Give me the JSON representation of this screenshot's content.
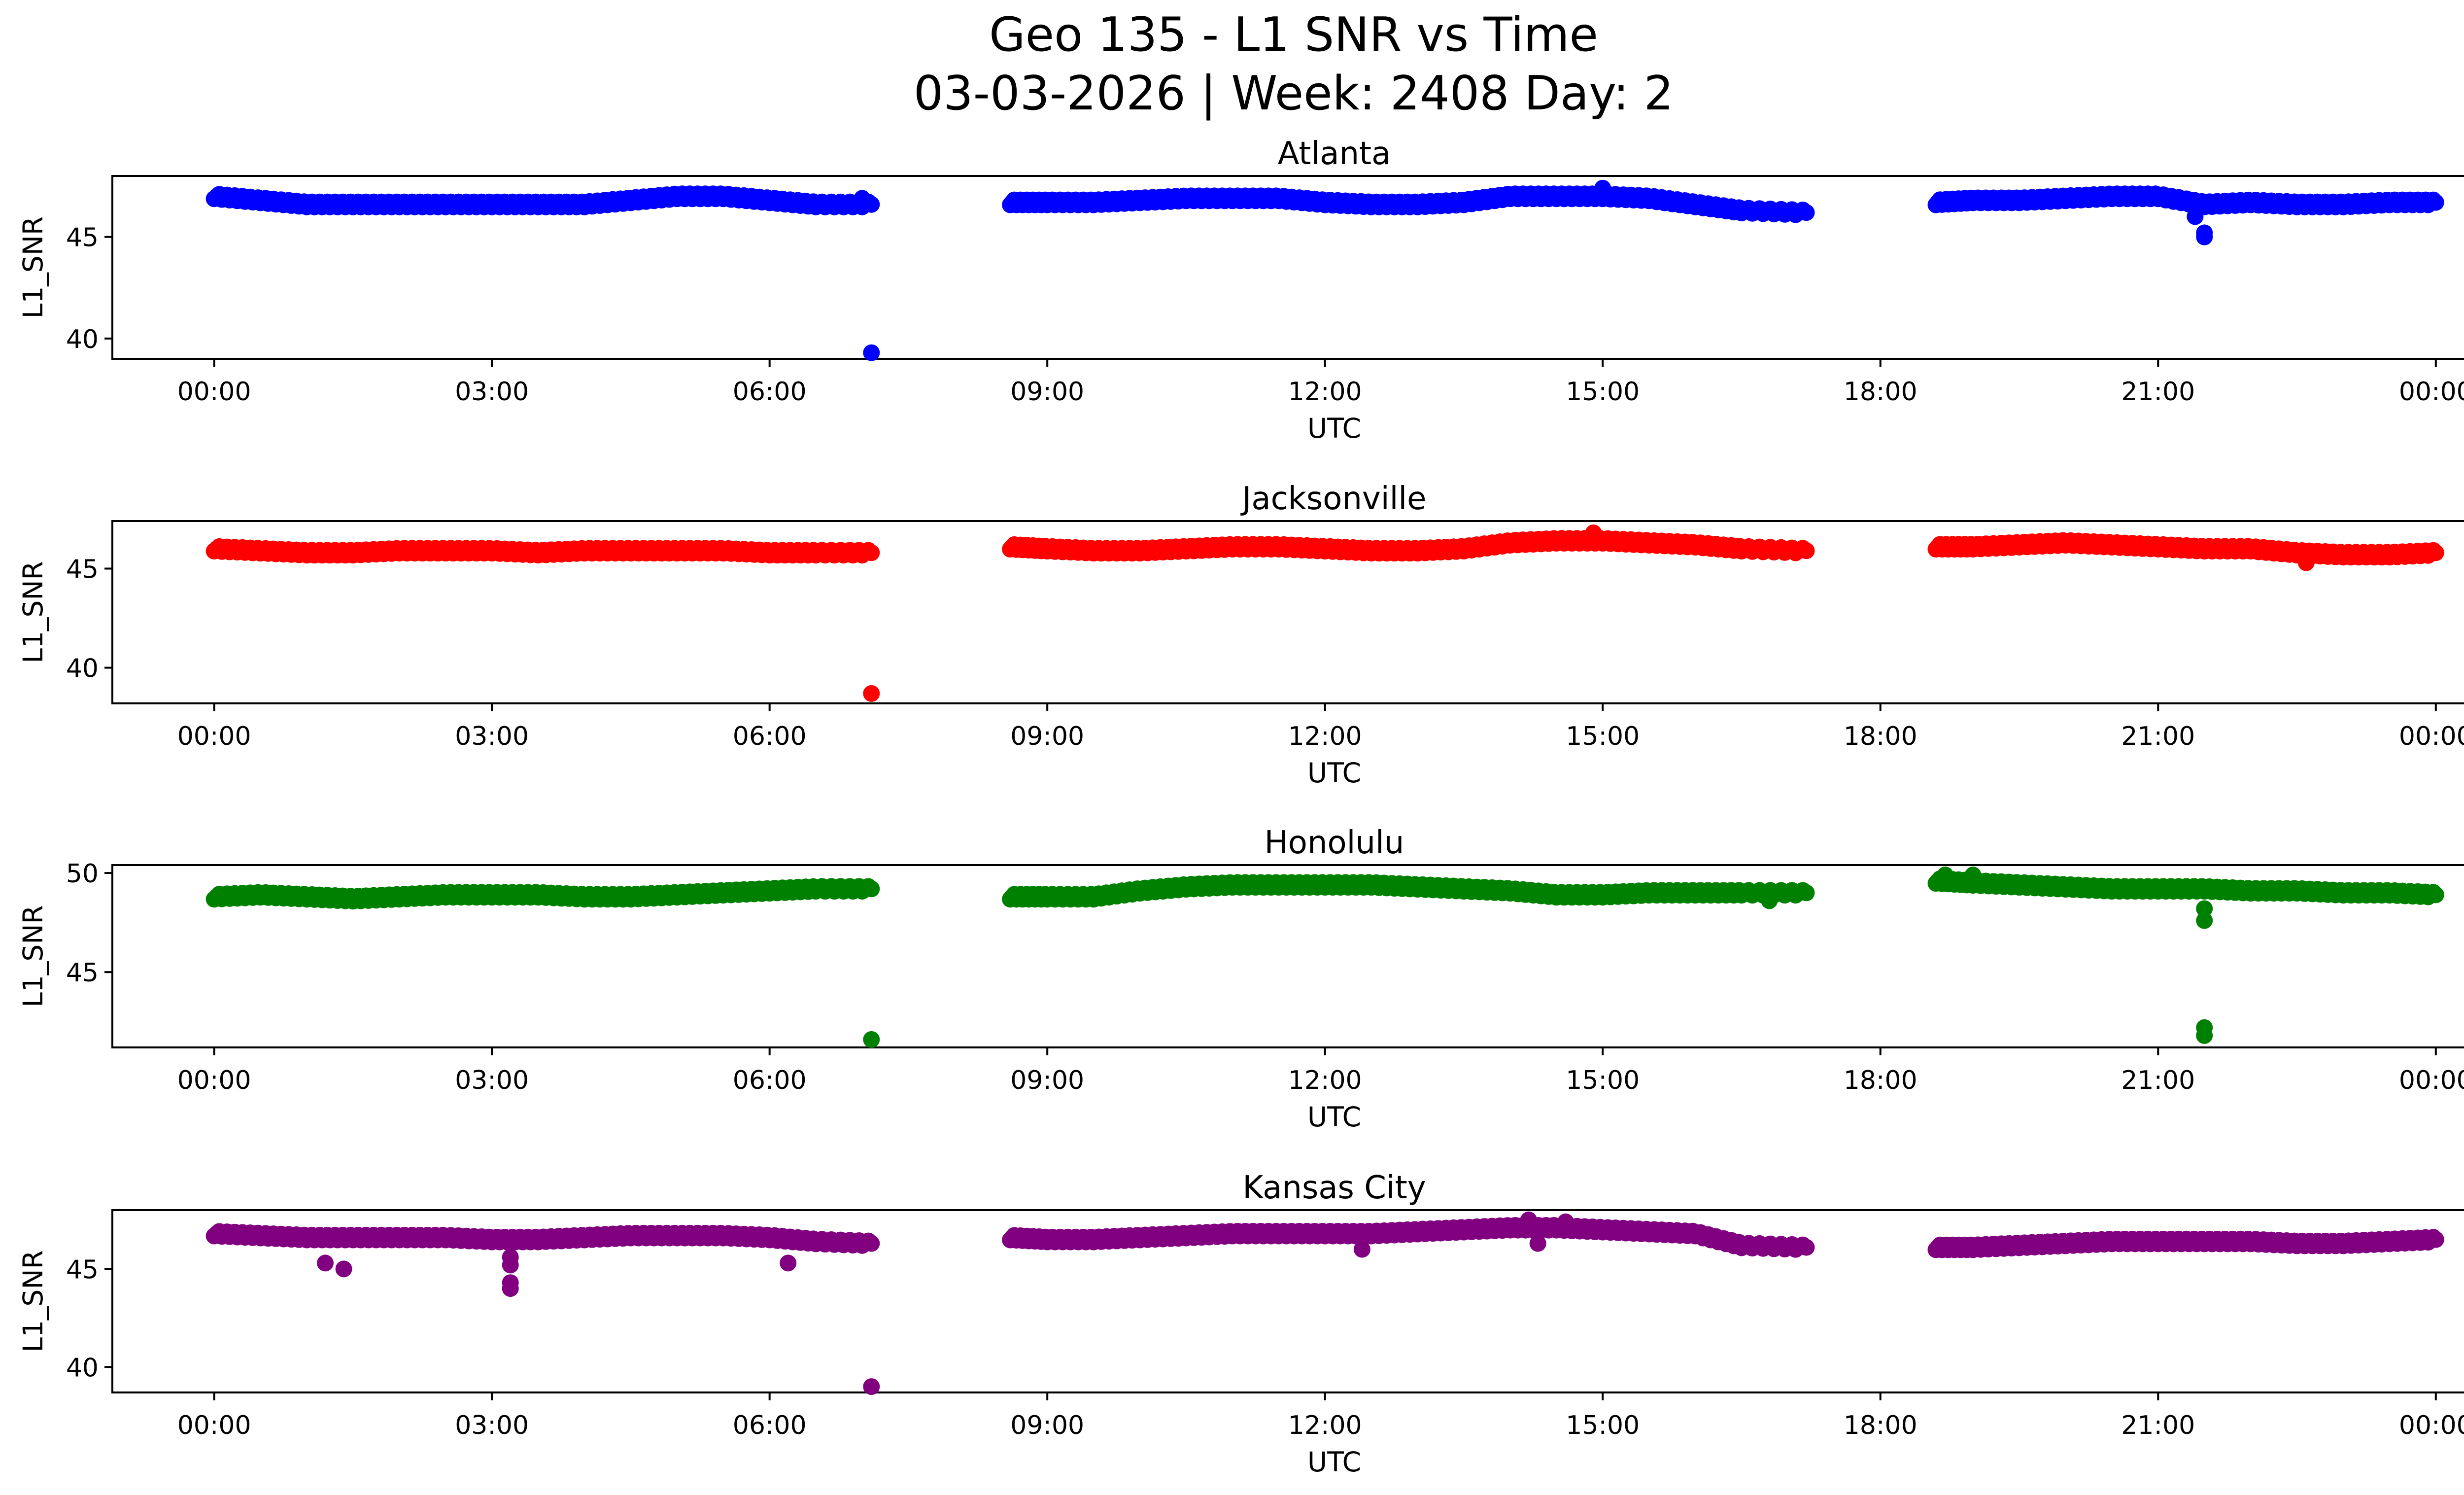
{
  "figure": {
    "title_line1": "Geo 135 - L1 SNR vs Time",
    "title_line2": "03-03-2026 | Week: 2408 Day: 2"
  },
  "chart_data": [
    {
      "type": "scatter",
      "title": "Atlanta",
      "xlabel": "UTC",
      "ylabel": "L1_SNR",
      "color": "#0000ff",
      "xlim": [
        -1.1,
        25.3
      ],
      "ylim": [
        39.0,
        48.0
      ],
      "yticks": [
        40,
        45
      ],
      "xtick_labels": [
        "00:00",
        "03:00",
        "06:00",
        "09:00",
        "12:00",
        "15:00",
        "18:00",
        "21:00",
        "00:00"
      ],
      "segments": [
        {
          "x": [
            0.0,
            0.5,
            1.0,
            1.5,
            2.0,
            2.5,
            3.0,
            3.5,
            4.0,
            4.5,
            5.0,
            5.5,
            6.0,
            6.5,
            7.1
          ],
          "y": [
            47.0,
            46.8,
            46.6,
            46.6,
            46.6,
            46.6,
            46.6,
            46.6,
            46.6,
            46.8,
            47.0,
            47.0,
            46.8,
            46.6,
            46.6
          ]
        },
        {
          "x": [
            8.6,
            9.0,
            9.5,
            10.0,
            10.5,
            11.0,
            11.5,
            12.0,
            12.5,
            13.0,
            13.5,
            14.0,
            14.5,
            15.0,
            15.5,
            16.0,
            16.5,
            17.2
          ],
          "y": [
            46.7,
            46.7,
            46.7,
            46.8,
            46.9,
            46.9,
            46.9,
            46.7,
            46.6,
            46.6,
            46.7,
            47.0,
            47.0,
            47.0,
            46.9,
            46.6,
            46.3,
            46.2
          ]
        },
        {
          "x": [
            18.6,
            19.0,
            19.5,
            20.0,
            20.5,
            21.0,
            21.5,
            22.0,
            22.5,
            23.0,
            23.5,
            24.0
          ],
          "y": [
            46.7,
            46.8,
            46.8,
            46.9,
            47.0,
            47.0,
            46.6,
            46.7,
            46.6,
            46.6,
            46.7,
            46.7
          ]
        }
      ],
      "points": [
        {
          "x": 7.1,
          "y": 39.3
        },
        {
          "x": 7.0,
          "y": 46.9
        },
        {
          "x": 15.0,
          "y": 47.4
        },
        {
          "x": 21.4,
          "y": 46.0
        },
        {
          "x": 21.5,
          "y": 45.2
        },
        {
          "x": 21.5,
          "y": 45.0
        }
      ]
    },
    {
      "type": "scatter",
      "title": "Jacksonville",
      "xlabel": "UTC",
      "ylabel": "L1_SNR",
      "color": "#ff0000",
      "xlim": [
        -1.1,
        25.3
      ],
      "ylim": [
        38.2,
        47.4
      ],
      "yticks": [
        40,
        45
      ],
      "xtick_labels": [
        "00:00",
        "03:00",
        "06:00",
        "09:00",
        "12:00",
        "15:00",
        "18:00",
        "21:00",
        "00:00"
      ],
      "segments": [
        {
          "x": [
            0.0,
            0.5,
            1.0,
            1.5,
            2.0,
            2.5,
            3.0,
            3.5,
            4.0,
            4.5,
            5.0,
            5.5,
            6.0,
            6.5,
            7.1
          ],
          "y": [
            46.0,
            45.9,
            45.8,
            45.8,
            45.9,
            45.9,
            45.9,
            45.8,
            45.9,
            45.9,
            45.9,
            45.9,
            45.8,
            45.8,
            45.8
          ]
        },
        {
          "x": [
            8.6,
            9.0,
            9.5,
            10.0,
            10.5,
            11.0,
            11.5,
            12.0,
            12.5,
            13.0,
            13.5,
            14.0,
            14.5,
            15.0,
            15.5,
            16.0,
            16.5,
            17.2
          ],
          "y": [
            46.1,
            46.0,
            45.9,
            45.9,
            46.0,
            46.1,
            46.1,
            46.0,
            45.9,
            45.9,
            46.0,
            46.3,
            46.4,
            46.4,
            46.3,
            46.2,
            46.0,
            45.9
          ]
        },
        {
          "x": [
            18.6,
            19.0,
            19.5,
            20.0,
            20.5,
            21.0,
            21.5,
            22.0,
            22.5,
            23.0,
            23.5,
            24.0
          ],
          "y": [
            46.1,
            46.1,
            46.2,
            46.3,
            46.2,
            46.1,
            46.0,
            46.0,
            45.8,
            45.7,
            45.7,
            45.8
          ]
        }
      ],
      "points": [
        {
          "x": 7.1,
          "y": 38.7
        },
        {
          "x": 14.9,
          "y": 46.8
        },
        {
          "x": 22.6,
          "y": 45.3
        }
      ]
    },
    {
      "type": "scatter",
      "title": "Honolulu",
      "xlabel": "UTC",
      "ylabel": "L1_SNR",
      "color": "#008000",
      "xlim": [
        -1.1,
        25.3
      ],
      "ylim": [
        41.2,
        50.4
      ],
      "yticks": [
        45,
        50
      ],
      "xtick_labels": [
        "00:00",
        "03:00",
        "06:00",
        "09:00",
        "12:00",
        "15:00",
        "18:00",
        "21:00",
        "00:00"
      ],
      "segments": [
        {
          "x": [
            0.0,
            0.5,
            1.0,
            1.5,
            2.0,
            2.5,
            3.0,
            3.5,
            4.0,
            4.5,
            5.0,
            5.5,
            6.0,
            6.5,
            7.1
          ],
          "y": [
            48.8,
            48.9,
            48.8,
            48.7,
            48.8,
            48.9,
            48.9,
            48.9,
            48.8,
            48.8,
            48.9,
            49.0,
            49.1,
            49.2,
            49.2
          ]
        },
        {
          "x": [
            8.6,
            9.0,
            9.5,
            10.0,
            10.5,
            11.0,
            11.5,
            12.0,
            12.5,
            13.0,
            13.5,
            14.0,
            14.5,
            15.0,
            15.5,
            16.0,
            16.5,
            17.2
          ],
          "y": [
            48.8,
            48.8,
            48.8,
            49.1,
            49.3,
            49.4,
            49.4,
            49.4,
            49.4,
            49.3,
            49.2,
            49.1,
            48.9,
            48.9,
            49.0,
            49.0,
            49.0,
            49.0
          ]
        },
        {
          "x": [
            18.6,
            19.0,
            19.5,
            20.0,
            20.5,
            21.0,
            21.5,
            22.0,
            22.5,
            23.0,
            23.5,
            24.0
          ],
          "y": [
            49.6,
            49.5,
            49.4,
            49.3,
            49.2,
            49.2,
            49.2,
            49.1,
            49.1,
            49.0,
            49.0,
            48.9
          ]
        }
      ],
      "points": [
        {
          "x": 7.1,
          "y": 41.6
        },
        {
          "x": 18.7,
          "y": 49.9
        },
        {
          "x": 19.0,
          "y": 49.9
        },
        {
          "x": 21.5,
          "y": 48.2
        },
        {
          "x": 21.5,
          "y": 47.6
        },
        {
          "x": 21.5,
          "y": 42.2
        },
        {
          "x": 21.5,
          "y": 41.8
        },
        {
          "x": 16.8,
          "y": 48.6
        }
      ]
    },
    {
      "type": "scatter",
      "title": "Kansas City",
      "xlabel": "UTC",
      "ylabel": "L1_SNR",
      "color": "#800080",
      "xlim": [
        -1.1,
        25.3
      ],
      "ylim": [
        38.7,
        48.0
      ],
      "yticks": [
        40,
        45
      ],
      "xtick_labels": [
        "00:00",
        "03:00",
        "06:00",
        "09:00",
        "12:00",
        "15:00",
        "18:00",
        "21:00",
        "00:00"
      ],
      "segments": [
        {
          "x": [
            0.0,
            0.5,
            1.0,
            1.5,
            2.0,
            2.5,
            3.0,
            3.5,
            4.0,
            4.5,
            5.0,
            5.5,
            6.0,
            6.5,
            7.1
          ],
          "y": [
            46.8,
            46.7,
            46.6,
            46.6,
            46.6,
            46.6,
            46.5,
            46.5,
            46.6,
            46.7,
            46.7,
            46.7,
            46.6,
            46.4,
            46.3
          ]
        },
        {
          "x": [
            8.6,
            9.0,
            9.5,
            10.0,
            10.5,
            11.0,
            11.5,
            12.0,
            12.5,
            13.0,
            13.5,
            14.0,
            14.5,
            15.0,
            15.5,
            16.0,
            16.5,
            17.2
          ],
          "y": [
            46.6,
            46.5,
            46.5,
            46.6,
            46.7,
            46.8,
            46.8,
            46.8,
            46.8,
            46.9,
            47.0,
            47.1,
            47.1,
            47.0,
            46.9,
            46.8,
            46.2,
            46.1
          ]
        },
        {
          "x": [
            18.6,
            19.0,
            19.5,
            20.0,
            20.5,
            21.0,
            21.5,
            22.0,
            22.5,
            23.0,
            23.5,
            24.0
          ],
          "y": [
            46.1,
            46.1,
            46.2,
            46.3,
            46.4,
            46.4,
            46.4,
            46.4,
            46.3,
            46.3,
            46.4,
            46.5
          ]
        }
      ],
      "points": [
        {
          "x": 7.1,
          "y": 39.0
        },
        {
          "x": 1.2,
          "y": 45.3
        },
        {
          "x": 1.4,
          "y": 45.0
        },
        {
          "x": 3.2,
          "y": 45.6
        },
        {
          "x": 3.2,
          "y": 45.2
        },
        {
          "x": 3.2,
          "y": 44.3
        },
        {
          "x": 3.2,
          "y": 44.0
        },
        {
          "x": 6.2,
          "y": 45.3
        },
        {
          "x": 12.4,
          "y": 46.0
        },
        {
          "x": 14.3,
          "y": 46.3
        },
        {
          "x": 14.2,
          "y": 47.5
        },
        {
          "x": 14.6,
          "y": 47.4
        }
      ]
    }
  ]
}
